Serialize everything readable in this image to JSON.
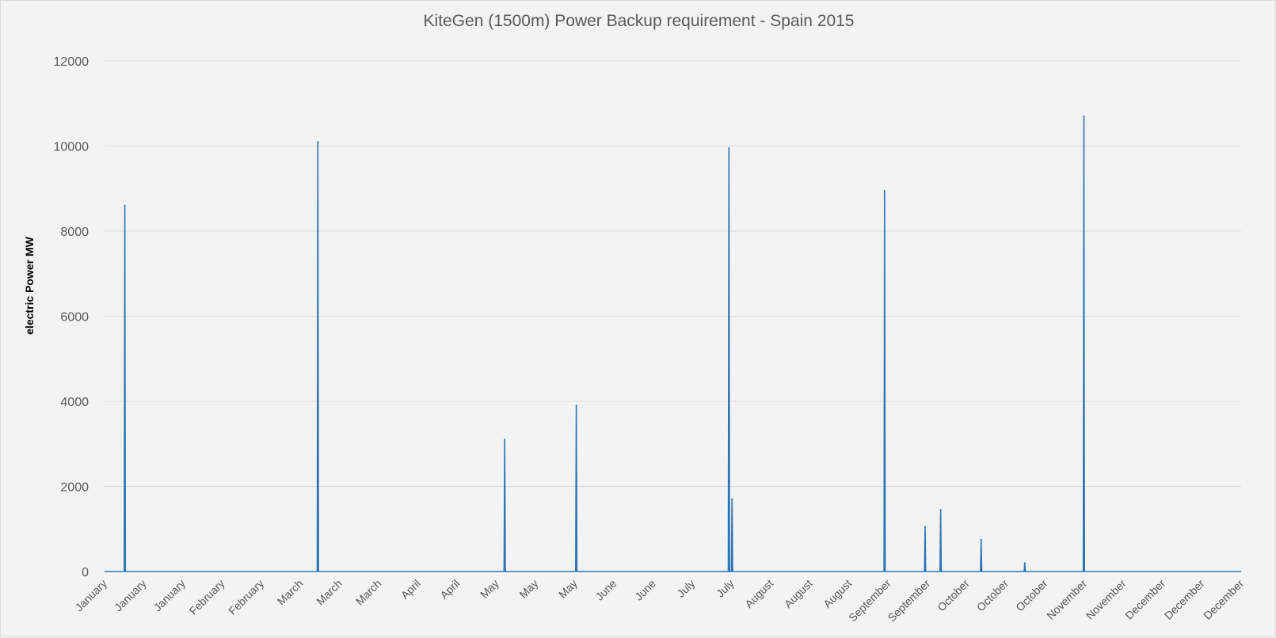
{
  "chart_data": {
    "type": "line",
    "title": "KiteGen (1500m) Power Backup requirement  - Spain 2015",
    "xlabel": "",
    "ylabel": "electric Power MW",
    "ylim": [
      0,
      12000
    ],
    "yticks": [
      0,
      2000,
      4000,
      6000,
      8000,
      10000,
      12000
    ],
    "xlim": [
      0,
      365
    ],
    "x_tick_labels": [
      "January",
      "January",
      "January",
      "February",
      "February",
      "March",
      "March",
      "March",
      "April",
      "April",
      "May",
      "May",
      "May",
      "June",
      "June",
      "July",
      "July",
      "August",
      "August",
      "August",
      "September",
      "September",
      "October",
      "October",
      "October",
      "November",
      "November",
      "December",
      "December",
      "December"
    ],
    "grid": true,
    "legend": "none",
    "series": [
      {
        "color": "#2e75b6",
        "spikes": [
          {
            "day": 6.5,
            "value": 8600
          },
          {
            "day": 68.5,
            "value": 10100
          },
          {
            "day": 128.5,
            "value": 3100
          },
          {
            "day": 151.5,
            "value": 3900
          },
          {
            "day": 200.5,
            "value": 9950
          },
          {
            "day": 201.5,
            "value": 1700
          },
          {
            "day": 250.5,
            "value": 8950
          },
          {
            "day": 263.5,
            "value": 1050
          },
          {
            "day": 268.5,
            "value": 1450
          },
          {
            "day": 281.5,
            "value": 750
          },
          {
            "day": 295.5,
            "value": 200
          },
          {
            "day": 314.5,
            "value": 10700
          }
        ]
      }
    ]
  }
}
